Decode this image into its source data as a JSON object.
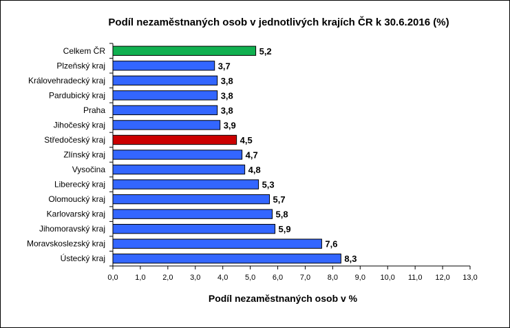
{
  "chart_data": {
    "type": "bar",
    "orientation": "horizontal",
    "title": "Podíl nezaměstnaných osob v jednotlivých krajích ČR k 30.6.2016 (%)",
    "xlabel": "Podíl nezaměstnaných osob v %",
    "ylabel": "",
    "xlim": [
      0,
      13
    ],
    "x_ticks": [
      "0,0",
      "1,0",
      "2,0",
      "3,0",
      "4,0",
      "5,0",
      "6,0",
      "7,0",
      "8,0",
      "9,0",
      "10,0",
      "11,0",
      "12,0",
      "13,0"
    ],
    "grid": false,
    "legend": "none",
    "categories": [
      "Celkem ČR",
      "Plzeňský kraj",
      "Královehradecký kraj",
      "Pardubický kraj",
      "Praha",
      "Jihočeský kraj",
      "Středočeský kraj",
      "Zlínský kraj",
      "Vysočina",
      "Liberecký kraj",
      "Olomoucký kraj",
      "Karlovarský kraj",
      "Jihomoravský kraj",
      "Moravskoslezský kraj",
      "Ústecký kraj"
    ],
    "values": [
      5.2,
      3.7,
      3.8,
      3.8,
      3.8,
      3.9,
      4.5,
      4.7,
      4.8,
      5.3,
      5.7,
      5.8,
      5.9,
      7.6,
      8.3
    ],
    "value_labels": [
      "5,2",
      "3,7",
      "3,8",
      "3,8",
      "3,8",
      "3,9",
      "4,5",
      "4,7",
      "4,8",
      "5,3",
      "5,7",
      "5,8",
      "5,9",
      "7,6",
      "8,3"
    ],
    "colors": {
      "default": "#3366ff",
      "highlight_total": "#11b050",
      "highlight_region": "#cc0000",
      "stroke": "#000000"
    },
    "highlight": {
      "Celkem ČR": "highlight_total",
      "Středočeský kraj": "highlight_region"
    }
  }
}
